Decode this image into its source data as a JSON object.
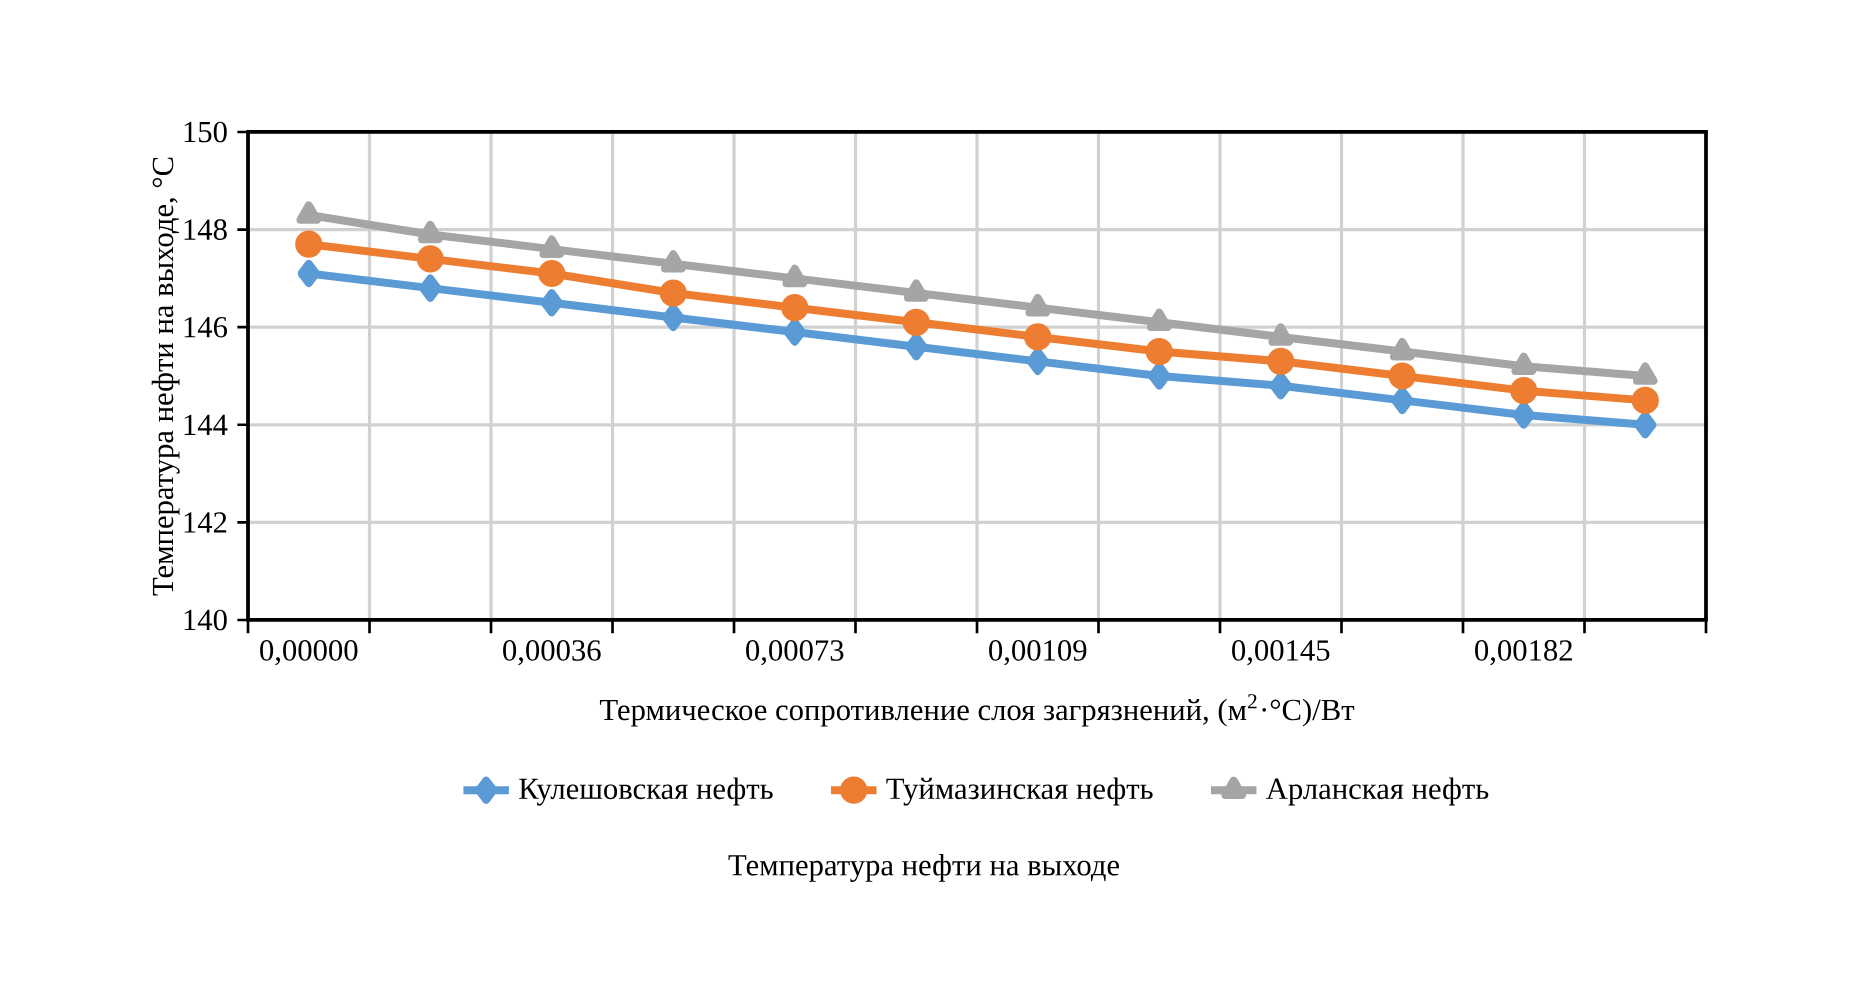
{
  "chart_data": {
    "type": "line",
    "title": "Температура нефти на выходе",
    "xlabel": "Термическое сопротивление слоя загрязнений, (м$^{2}$·°C)/Вт",
    "ylabel": "Температура нефти на выходе, °С",
    "categories": [
      "0,00000",
      null,
      "0,00036",
      null,
      "0,00073",
      null,
      "0,00109",
      null,
      "0,00145",
      null,
      "0,00182",
      null
    ],
    "series": [
      {
        "name": "Кулешовская нефть",
        "color": "#5b9bd5",
        "marker": "diamond",
        "values": [
          147.1,
          146.8,
          146.5,
          146.2,
          145.9,
          145.6,
          145.3,
          145.0,
          144.8,
          144.5,
          144.2,
          144.0
        ]
      },
      {
        "name": "Туймазинская нефть",
        "color": "#ed7d31",
        "marker": "circle",
        "values": [
          147.7,
          147.4,
          147.1,
          146.7,
          146.4,
          146.1,
          145.8,
          145.5,
          145.3,
          145.0,
          144.7,
          144.5
        ]
      },
      {
        "name": "Арланская нефть",
        "color": "#a5a5a5",
        "marker": "triangle",
        "values": [
          148.3,
          147.9,
          147.6,
          147.3,
          147.0,
          146.7,
          146.4,
          146.1,
          145.8,
          145.5,
          145.2,
          145.0
        ]
      }
    ],
    "ylim": [
      140,
      150
    ],
    "yticks": [
      140,
      142,
      144,
      146,
      148,
      150
    ],
    "grid": true,
    "legend": "bottom",
    "line_style": "solid"
  }
}
